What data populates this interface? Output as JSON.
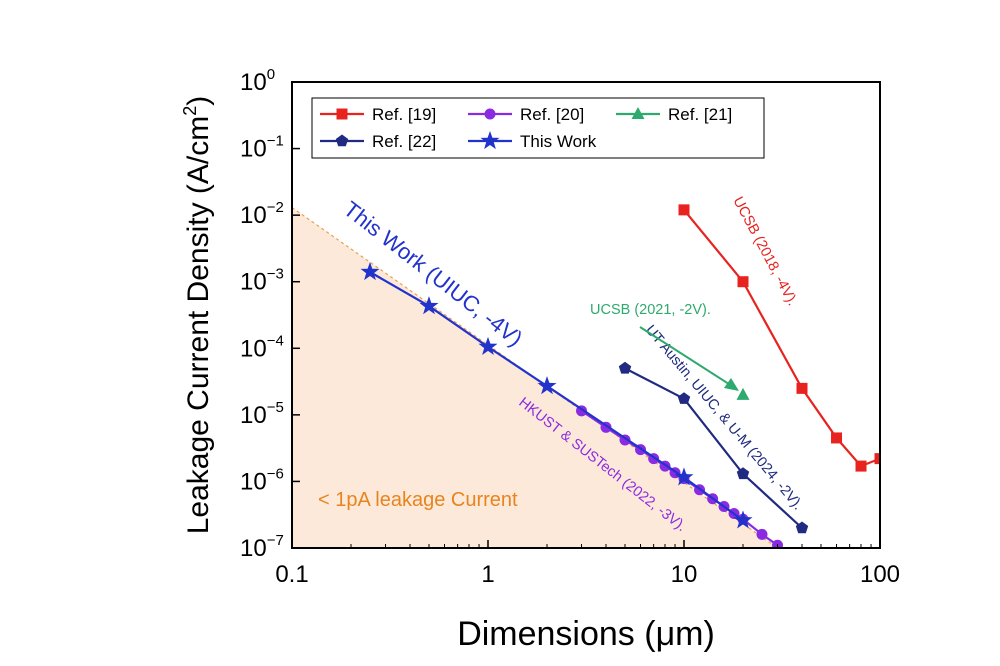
{
  "chart_data": {
    "type": "line",
    "xscale": "log",
    "yscale": "log",
    "xlim": [
      0.1,
      100
    ],
    "ylim": [
      1e-07,
      1
    ],
    "xlabel": "Dimensions (μm)",
    "ylabel": "Leakage Current Density (A/cm",
    "ylabel_sup": "2",
    "ylabel_close": ")",
    "x_ticks": [
      {
        "value": 0.1,
        "label": "0.1"
      },
      {
        "value": 1,
        "label": "1"
      },
      {
        "value": 10,
        "label": "10"
      },
      {
        "value": 100,
        "label": "100"
      }
    ],
    "y_ticks": [
      {
        "value": 1e-07,
        "base": "10",
        "exp": "−7"
      },
      {
        "value": 1e-06,
        "base": "10",
        "exp": "−6"
      },
      {
        "value": 1e-05,
        "base": "10",
        "exp": "−5"
      },
      {
        "value": 0.0001,
        "base": "10",
        "exp": "−4"
      },
      {
        "value": 0.001,
        "base": "10",
        "exp": "−3"
      },
      {
        "value": 0.01,
        "base": "10",
        "exp": "−2"
      },
      {
        "value": 0.1,
        "base": "10",
        "exp": "−1"
      },
      {
        "value": 1,
        "base": "10",
        "exp": "0"
      }
    ],
    "series": [
      {
        "name": "Ref. [19]",
        "color": "#e8231f",
        "marker": "square",
        "x": [
          10,
          20,
          40,
          60,
          80,
          100
        ],
        "y": [
          0.012,
          0.001,
          2.5e-05,
          4.5e-06,
          1.7e-06,
          2.2e-06
        ]
      },
      {
        "name": "Ref. [20]",
        "color": "#8a2be2",
        "marker": "circle",
        "x": [
          3,
          4,
          5,
          6,
          7,
          8,
          9,
          10,
          12,
          14,
          16,
          18,
          20,
          25,
          30
        ],
        "y": [
          1.15e-05,
          6.5e-06,
          4.2e-06,
          3e-06,
          2.2e-06,
          1.7e-06,
          1.35e-06,
          1.1e-06,
          7.5e-07,
          5.5e-07,
          4.2e-07,
          3.3e-07,
          2.7e-07,
          1.6e-07,
          1.1e-07
        ]
      },
      {
        "name": "Ref. [21]",
        "color": "#2eaa6e",
        "marker": "triangle",
        "x": [
          20
        ],
        "y": [
          2e-05
        ]
      },
      {
        "name": "Ref. [22]",
        "color": "#1f2a80",
        "marker": "pentagon",
        "x": [
          5,
          10,
          20,
          40
        ],
        "y": [
          5e-05,
          1.75e-05,
          1.3e-06,
          2e-07
        ]
      },
      {
        "name": "This Work",
        "color": "#2233cc",
        "marker": "star",
        "x": [
          0.25,
          0.5,
          1,
          2,
          10,
          20
        ],
        "y": [
          0.0014,
          0.00043,
          0.000105,
          2.7e-05,
          1.15e-06,
          2.6e-07
        ]
      }
    ],
    "legend": {
      "position": "top-left",
      "columns": 3
    },
    "region": {
      "label": "< 1pA leakage Current",
      "color": "#fde9d9",
      "line_color": "#e8a050",
      "boundary": [
        [
          0.1,
          0.013
        ],
        [
          30,
          1e-07
        ]
      ]
    },
    "annotations": [
      {
        "text": "This Work (UIUC, -4V)",
        "color": "#2233cc"
      },
      {
        "text": "HKUST & SUSTech (2022, -3V).",
        "color": "#8a2be2"
      },
      {
        "text": "UT Austin, UIUC, & U-M (2024, -2V).",
        "color": "#1f2a80"
      },
      {
        "text": "UCSB (2021, -2V).",
        "color": "#2eaa6e"
      },
      {
        "text": "UCSB (2018, -4V).",
        "color": "#e8231f"
      }
    ]
  }
}
